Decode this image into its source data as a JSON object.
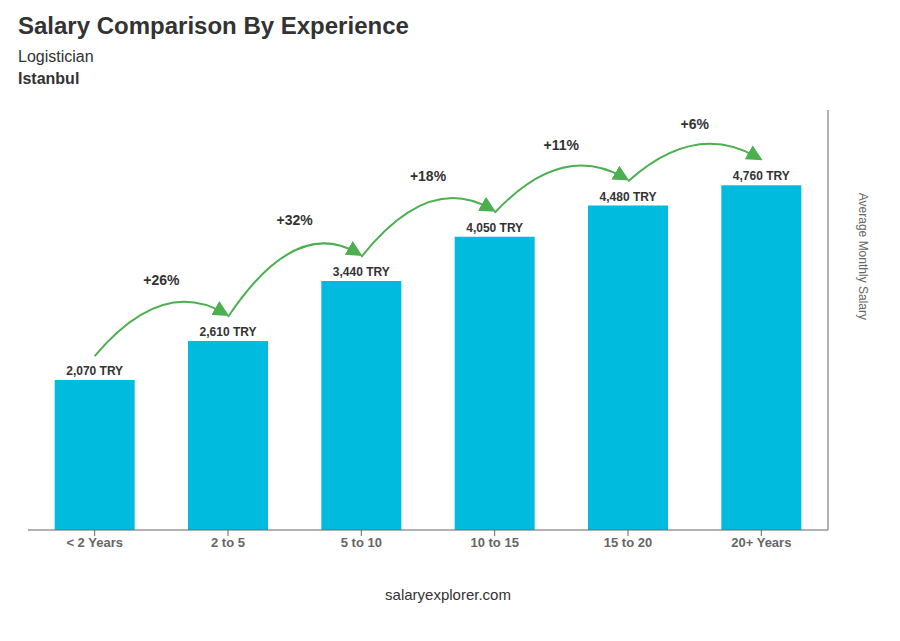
{
  "chart_data": {
    "type": "bar",
    "title": "Salary Comparison By Experience",
    "subtitle": [
      "Logistician",
      "Istanbul"
    ],
    "ylabel": "Average Monthly Salary",
    "categories": [
      "< 2 Years",
      "2 to 5",
      "5 to 10",
      "10 to 15",
      "15 to 20",
      "20+ Years"
    ],
    "values": [
      2070,
      2610,
      3440,
      4050,
      4480,
      4760
    ],
    "value_labels": [
      "2,070 TRY",
      "2,610 TRY",
      "3,440 TRY",
      "4,050 TRY",
      "4,480 TRY",
      "4,760 TRY"
    ],
    "data_labels": true,
    "annotations": [
      "+26%",
      "+32%",
      "+18%",
      "+11%",
      "+6%"
    ],
    "footer": "salaryexplorer.com",
    "color": "#00BBDD",
    "ylim": [
      0,
      5800
    ],
    "tick_labels": "x"
  }
}
